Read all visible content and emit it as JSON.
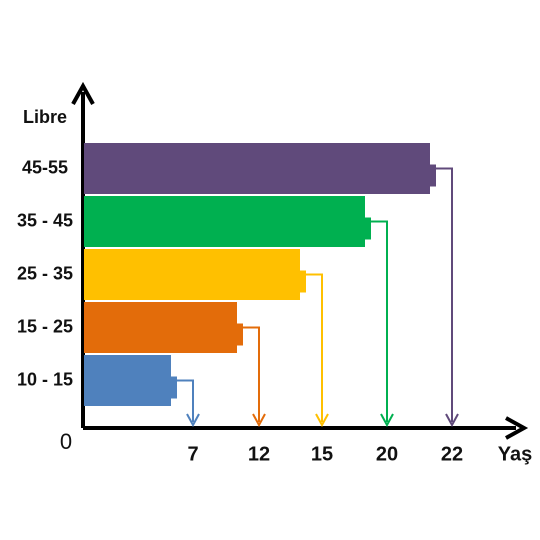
{
  "chart_data": {
    "type": "bar",
    "orientation": "horizontal",
    "y_label": "Libre",
    "x_label": "Yaş",
    "categories": [
      "10 - 15",
      "15 - 25",
      "25 - 35",
      "35 - 45",
      "45-55"
    ],
    "values": [
      7,
      12,
      15,
      20,
      22
    ],
    "colors": [
      "#4f81bd",
      "#e36c0a",
      "#ffc000",
      "#00b050",
      "#604a7b"
    ],
    "xticks": [
      0,
      7,
      12,
      15,
      20,
      22
    ]
  }
}
